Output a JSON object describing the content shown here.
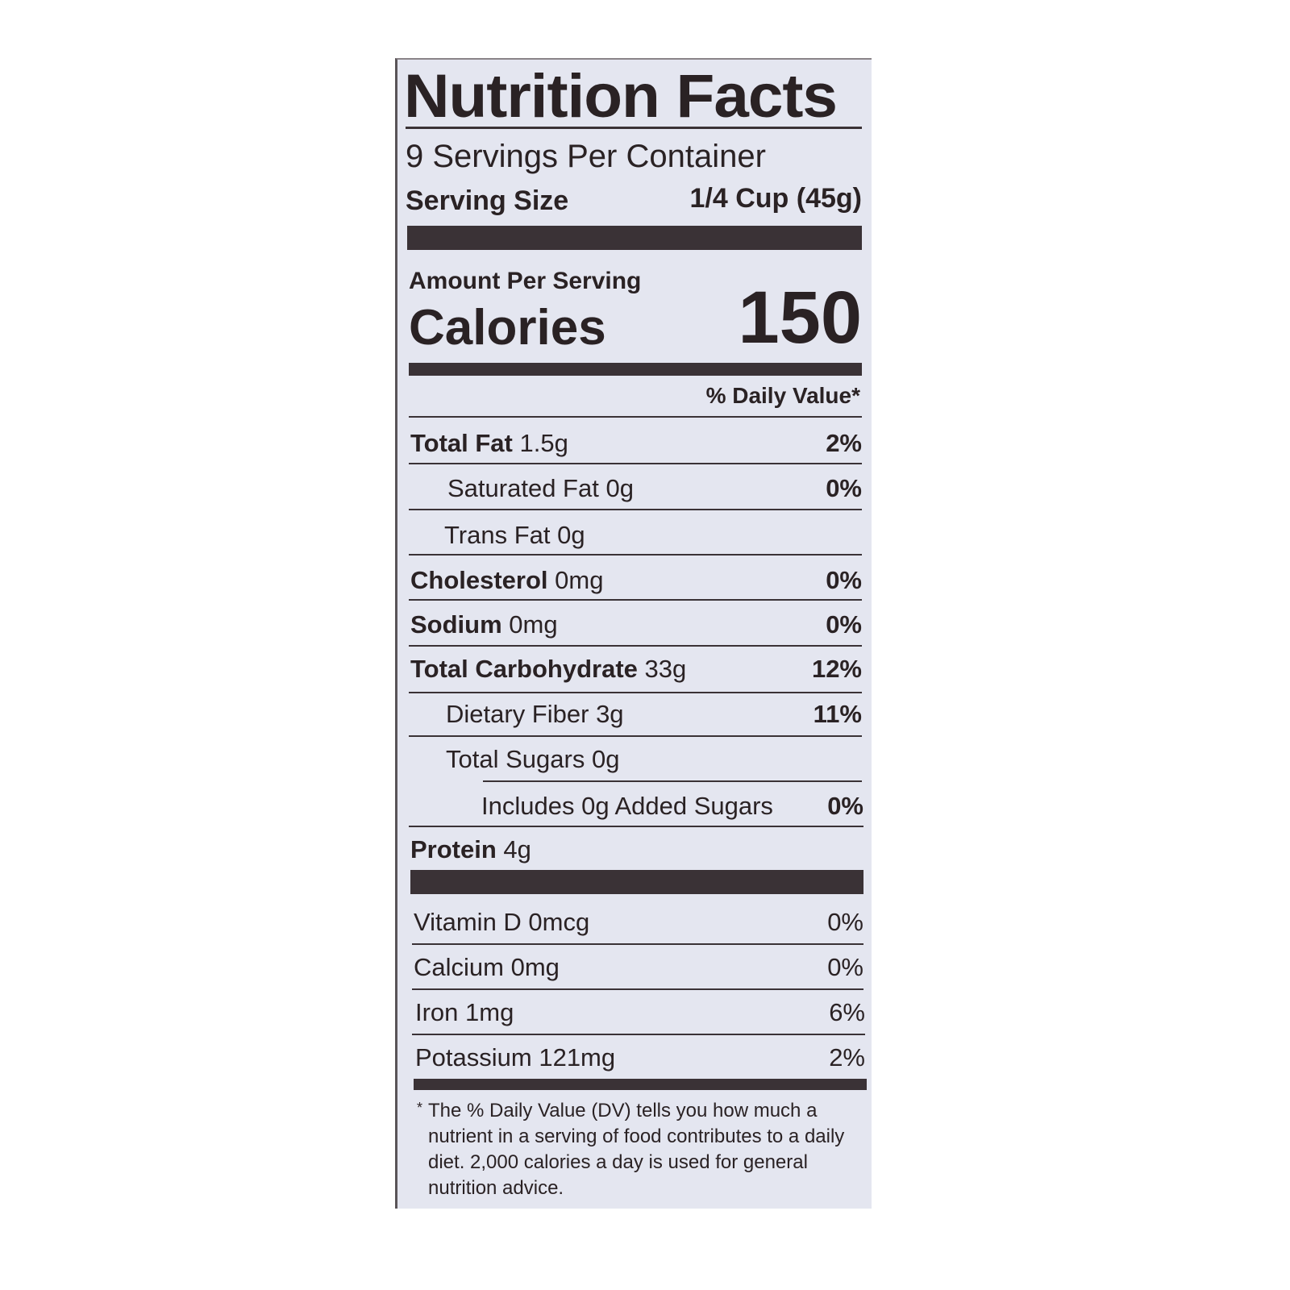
{
  "title": "Nutrition Facts",
  "servings_per_container": "9 Servings Per Container",
  "serving_size": {
    "label": "Serving Size",
    "value": "1/4 Cup (45g)"
  },
  "amount_per_serving": "Amount Per Serving",
  "calories": {
    "label": "Calories",
    "value": "150"
  },
  "daily_value_header": "% Daily Value*",
  "nutrients": [
    {
      "name": "Total Fat",
      "amount": "1.5g",
      "dv": "2%"
    },
    {
      "name": "Saturated Fat",
      "amount": "0g",
      "dv": "0%"
    },
    {
      "name": "Trans Fat",
      "amount": "0g",
      "dv": ""
    },
    {
      "name": "Cholesterol",
      "amount": "0mg",
      "dv": "0%"
    },
    {
      "name": "Sodium",
      "amount": "0mg",
      "dv": "0%"
    },
    {
      "name": "Total Carbohydrate",
      "amount": "33g",
      "dv": "12%"
    },
    {
      "name": "Dietary Fiber",
      "amount": "3g",
      "dv": "11%"
    },
    {
      "name": "Total Sugars",
      "amount": "0g",
      "dv": ""
    },
    {
      "name": "Includes 0g Added Sugars",
      "amount": "",
      "dv": "0%"
    },
    {
      "name": "Protein",
      "amount": "4g",
      "dv": ""
    }
  ],
  "vitamins": [
    {
      "name": "Vitamin D 0mcg",
      "dv": "0%"
    },
    {
      "name": "Calcium 0mg",
      "dv": "0%"
    },
    {
      "name": "Iron 1mg",
      "dv": "6%"
    },
    {
      "name": "Potassium 121mg",
      "dv": "2%"
    }
  ],
  "footnote": "The % Daily Value (DV) tells you how much a nutrient in a serving of food contributes to a daily diet. 2,000 calories a day is used for general nutrition advice.",
  "footnote_marker": "*"
}
